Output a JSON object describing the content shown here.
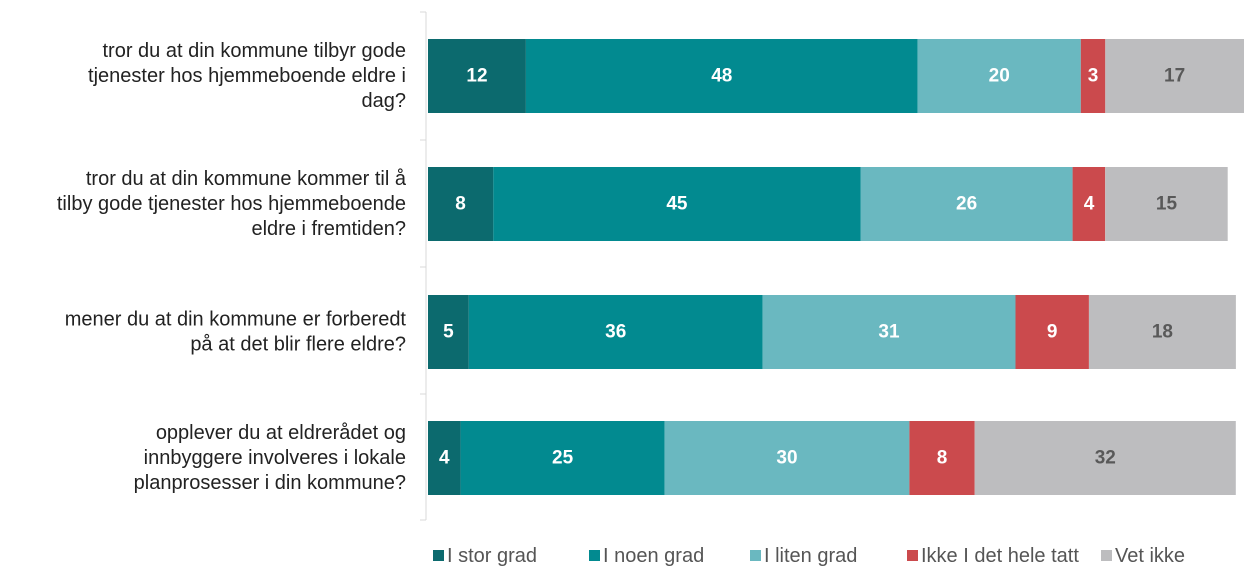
{
  "chart_data": {
    "type": "bar",
    "orientation": "horizontal",
    "stacked": true,
    "categories": [
      [
        "tror du at din kommune tilbyr gode",
        "tjenester hos hjemmeboende eldre i",
        "dag?"
      ],
      [
        "tror du at din kommune kommer til å",
        "tilby gode tjenester hos hjemmeboende",
        "eldre i fremtiden?"
      ],
      [
        "mener du at din kommune er forberedt",
        "på at det blir flere eldre?"
      ],
      [
        "opplever du at eldrerådet og",
        "innbyggere involveres i lokale",
        "planprosesser i din kommune?"
      ]
    ],
    "series": [
      {
        "name": "I stor grad",
        "color": "#0c6a6e",
        "label_color": "#ffffff",
        "values": [
          12,
          8,
          5,
          4
        ]
      },
      {
        "name": "I noen grad",
        "color": "#028a90",
        "label_color": "#ffffff",
        "values": [
          48,
          45,
          36,
          25
        ]
      },
      {
        "name": "I liten grad",
        "color": "#6ab8c0",
        "label_color": "#ffffff",
        "values": [
          20,
          26,
          31,
          30
        ]
      },
      {
        "name": "Ikke I det hele tatt",
        "color": "#cb4a4d",
        "label_color": "#ffffff",
        "values": [
          3,
          4,
          9,
          8
        ]
      },
      {
        "name": "Vet ikke",
        "color": "#bdbdbf",
        "label_color": "#595959",
        "values": [
          17,
          15,
          18,
          32
        ]
      }
    ],
    "xlim": [
      0,
      100
    ],
    "grid": false,
    "legend_position": "bottom"
  }
}
